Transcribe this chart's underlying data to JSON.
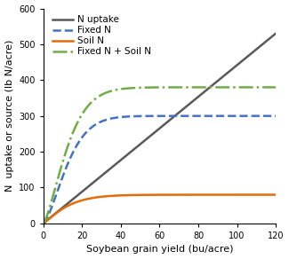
{
  "x_min": 0,
  "x_max": 120,
  "y_min": 0,
  "y_max": 600,
  "x_ticks": [
    0,
    20,
    40,
    60,
    80,
    100,
    120
  ],
  "y_ticks": [
    0,
    100,
    200,
    300,
    400,
    500,
    600
  ],
  "xlabel": "Soybean grain yield (bu/acre)",
  "ylabel": "N  uptake or source (lb N/acre)",
  "n_uptake_slope": 4.42,
  "fixed_n_max": 300,
  "fixed_n_k": 0.018,
  "soil_n_max": 80,
  "soil_n_k": 0.045,
  "line_styles": {
    "n_uptake": {
      "color": "#595959",
      "linestyle": "-",
      "linewidth": 1.8,
      "label": "N uptake"
    },
    "fixed_n": {
      "color": "#4472C4",
      "linestyle": "--",
      "linewidth": 1.8,
      "label": "Fixed N"
    },
    "soil_n": {
      "color": "#E36C09",
      "linestyle": "-",
      "linewidth": 1.8,
      "label": "Soil N"
    },
    "fixed_soil_n": {
      "color": "#70AD47",
      "linestyle": "-.",
      "linewidth": 1.8,
      "label": "Fixed N + Soil N"
    }
  },
  "legend_fontsize": 7.5,
  "axis_fontsize": 8,
  "tick_fontsize": 7,
  "background_color": "#ffffff"
}
